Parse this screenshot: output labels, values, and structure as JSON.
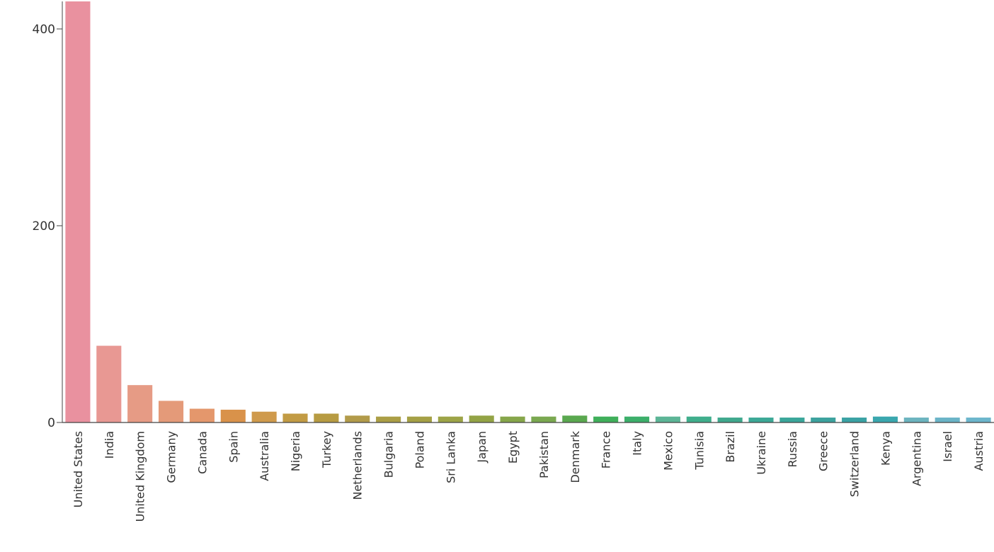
{
  "chart_data": {
    "type": "bar",
    "title": "",
    "xlabel": "",
    "ylabel": "",
    "ylim": [
      0,
      428
    ],
    "yticks": [
      0,
      200,
      400
    ],
    "grid": false,
    "legend": "none",
    "categories": [
      "United States",
      "India",
      "United Kingdom",
      "Germany",
      "Canada",
      "Spain",
      "Australia",
      "Nigeria",
      "Turkey",
      "Netherlands",
      "Bulgaria",
      "Poland",
      "Sri Lanka",
      "Japan",
      "Egypt",
      "Pakistan",
      "Denmark",
      "France",
      "Italy",
      "Mexico",
      "Tunisia",
      "Brazil",
      "Ukraine",
      "Russia",
      "Greece",
      "Switzerland",
      "Kenya",
      "Argentina",
      "Israel",
      "Austria"
    ],
    "values": [
      428,
      78,
      38,
      22,
      14,
      13,
      11,
      9,
      9,
      7,
      6,
      6,
      6,
      7,
      6,
      6,
      7,
      6,
      6,
      6,
      6,
      5,
      5,
      5,
      5,
      5,
      6,
      5,
      5,
      5
    ],
    "colors": [
      "#e9919f",
      "#e89893",
      "#e69b85",
      "#e49a79",
      "#e4976c",
      "#d9924a",
      "#cf9a4c",
      "#c29b44",
      "#b79b42",
      "#b29b4a",
      "#ab9e45",
      "#a5a045",
      "#9da447",
      "#93a345",
      "#86a64a",
      "#7aa850",
      "#5aa84f",
      "#3faf5a",
      "#3caf6a",
      "#5cb596",
      "#3fae8c",
      "#3fa88d",
      "#3ca896",
      "#3aa69a",
      "#3ca29e",
      "#3aa2a4",
      "#3aa7ae",
      "#6cb4bf",
      "#6ab4c7",
      "#6cb6cc"
    ]
  }
}
